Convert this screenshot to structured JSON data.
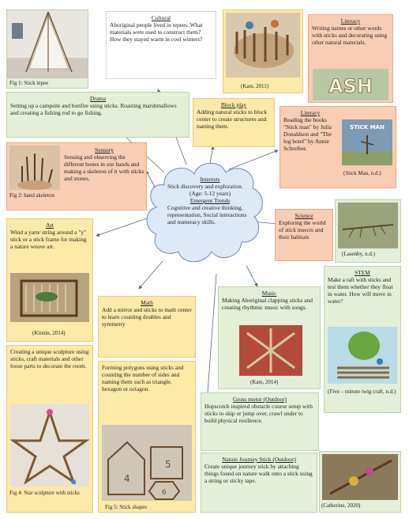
{
  "center": {
    "title": "Interests",
    "text": "Stick discovery and exploration.",
    "age": "(Age: 5-12 years)",
    "trends_title": "Emergent Trends",
    "trends_text": "Cognitive and creative thinking, representation, Social interactions and numeracy skills."
  },
  "cultural": {
    "title": "Cultural",
    "text": "Aboriginal people lived in tepees. What materials were used to construct them? How they stayed warm in cool winters?"
  },
  "literacy1": {
    "title": "Literacy",
    "text": "Writing names or other words with sticks and decorating using other natural materials."
  },
  "literacy2": {
    "title": "Literacy",
    "text": "Reading the books \"Stick man\" by Julia Donaldson and \"The log hotel\" by Annie Schreiber.",
    "caption": "(Stick Man, n.d.)",
    "book_title": "STICK MAN"
  },
  "block": {
    "title": "Block play",
    "text": "Adding natural sticks to block center to create structures and naming them.",
    "caption": "(Kate, 2011)"
  },
  "drama": {
    "title": "Drama",
    "text": "Setting up a campsite and bonfire using sticks. Roasting marshmallows and creating a fishing rod to go fishing.",
    "fig": "Fig 1: Stick tepee"
  },
  "sensory": {
    "title": "Sensory",
    "text": "Sensing and observing the different bones in our hands and making a skeleton of it with sticks and stones.",
    "fig": "Fig 2: hand skeleton"
  },
  "art": {
    "title": "Art",
    "text": "Wind a yarn/ string around a \"y\" stick or a stick frame for making a nature weave art.",
    "caption": "(Kirstin, 2014)"
  },
  "sculpture": {
    "text": "Creating a unique sculpture using sticks, craft materials and other loose parts to decorate the room.",
    "fig": "Fig 4: Star sculpture with sticks"
  },
  "math1": {
    "title": "Math",
    "text": "Add a mirror and sticks to math center to learn counting doubles and symmetry"
  },
  "math2": {
    "text": "Forming polygons using sticks and counting the number of sides and naming them such as triangle, hexagon or octagon.",
    "fig": "Fig 5: Stick shapes",
    "digits": [
      "4",
      "5",
      "6"
    ]
  },
  "music": {
    "title": "Music",
    "text": "Making Aboriginal clapping sticks and creating rhythmic music with songs.",
    "caption": "(Kate, 2014)"
  },
  "science": {
    "title": "Science",
    "text": "Exploring the world of stick insects and their habitats",
    "caption": "(Lasenby, n.d.)"
  },
  "stem": {
    "title": "STEM",
    "text": "Make a raft with sticks and test them whether they float in water.  How will move in water?",
    "caption": "(Five – minute twig craft, n.d.)"
  },
  "gross": {
    "title": "Gross motor (Outdoor)",
    "text": "Hopscotch inspired obstacle course setup with sticks to skip or jump over, crawl under to build physical resilience."
  },
  "nature": {
    "title": "Nature Journey Stick (Outdoor)",
    "text": "Create unique journey stick by attaching things found on nature walk onto a stick using a string or sticky tape.",
    "caption": "(Catherine, 2020)"
  },
  "ash_word": "ASH"
}
